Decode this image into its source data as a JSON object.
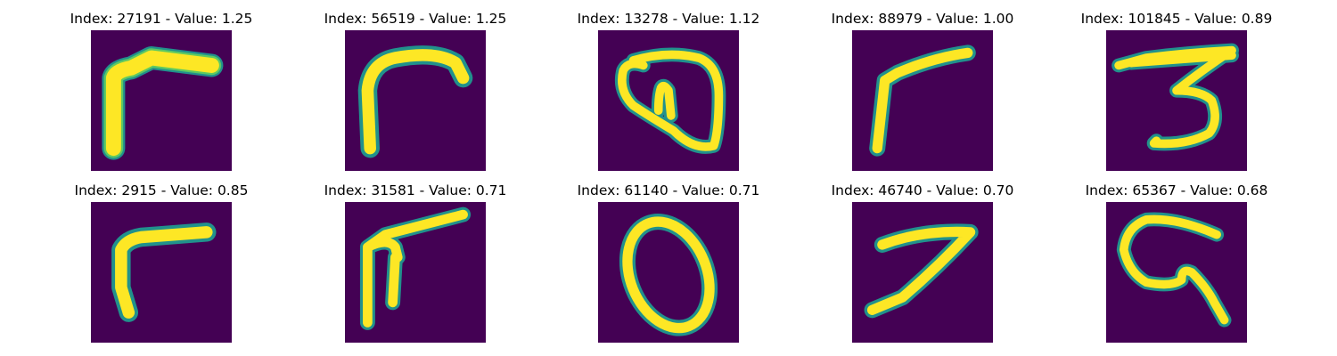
{
  "figure": {
    "panels": [
      {
        "index": "27191",
        "value": "1.25",
        "title": "Index: 27191 - Value: 1.25",
        "glyph": "hooked-stroke-thick"
      },
      {
        "index": "56519",
        "value": "1.25",
        "title": "Index: 56519 - Value: 1.25",
        "glyph": "curved-hook"
      },
      {
        "index": "13278",
        "value": "1.12",
        "title": "Index: 13278 - Value: 1.12",
        "glyph": "looped-blob"
      },
      {
        "index": "88979",
        "value": "1.00",
        "title": "Index: 88979 - Value: 1.00",
        "glyph": "slanted-hook"
      },
      {
        "index": "101845",
        "value": "0.89",
        "title": "Index: 101845 - Value: 0.89",
        "glyph": "digit-three"
      },
      {
        "index": "2915",
        "value": "0.85",
        "title": "Index: 2915 - Value: 0.85",
        "glyph": "right-angle-hook"
      },
      {
        "index": "31581",
        "value": "0.71",
        "title": "Index: 31581 - Value: 0.71",
        "glyph": "double-stem-hook"
      },
      {
        "index": "61140",
        "value": "0.71",
        "title": "Index: 61140 - Value: 0.71",
        "glyph": "digit-zero"
      },
      {
        "index": "46740",
        "value": "0.70",
        "title": "Index: 46740 - Value: 0.70",
        "glyph": "digit-seven"
      },
      {
        "index": "65367",
        "value": "0.68",
        "title": "Index: 65367 - Value: 0.68",
        "glyph": "curled-stroke"
      }
    ],
    "colors": {
      "background": "#440154",
      "stroke": "#fde725",
      "stroke_edge": "#21918c",
      "stroke_mid": "#5ec962"
    }
  }
}
